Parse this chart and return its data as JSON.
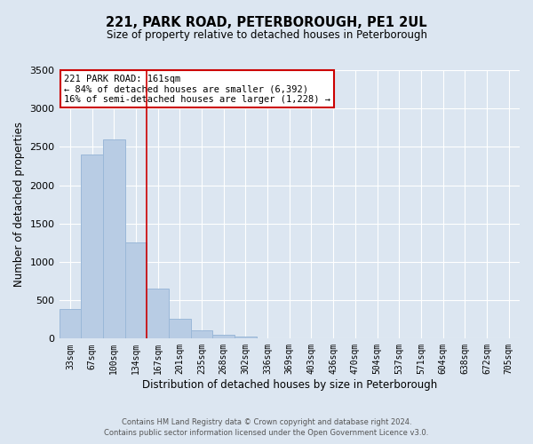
{
  "title": "221, PARK ROAD, PETERBOROUGH, PE1 2UL",
  "subtitle": "Size of property relative to detached houses in Peterborough",
  "xlabel": "Distribution of detached houses by size in Peterborough",
  "ylabel": "Number of detached properties",
  "bar_labels": [
    "33sqm",
    "67sqm",
    "100sqm",
    "134sqm",
    "167sqm",
    "201sqm",
    "235sqm",
    "268sqm",
    "302sqm",
    "336sqm",
    "369sqm",
    "403sqm",
    "436sqm",
    "470sqm",
    "504sqm",
    "537sqm",
    "571sqm",
    "604sqm",
    "638sqm",
    "672sqm",
    "705sqm"
  ],
  "bar_values": [
    390,
    2400,
    2600,
    1250,
    650,
    260,
    105,
    55,
    30,
    0,
    0,
    0,
    0,
    0,
    0,
    0,
    0,
    0,
    0,
    0,
    0
  ],
  "bar_color": "#b8cce4",
  "bar_edge_color": "#9ab8d8",
  "background_color": "#dce6f1",
  "grid_color": "#ffffff",
  "vline_color": "#cc0000",
  "ylim": [
    0,
    3500
  ],
  "yticks": [
    0,
    500,
    1000,
    1500,
    2000,
    2500,
    3000,
    3500
  ],
  "annotation_line1": "221 PARK ROAD: 161sqm",
  "annotation_line2": "← 84% of detached houses are smaller (6,392)",
  "annotation_line3": "16% of semi-detached houses are larger (1,228) →",
  "annotation_box_edge_color": "#cc0000",
  "footer_line1": "Contains HM Land Registry data © Crown copyright and database right 2024.",
  "footer_line2": "Contains public sector information licensed under the Open Government Licence v3.0."
}
